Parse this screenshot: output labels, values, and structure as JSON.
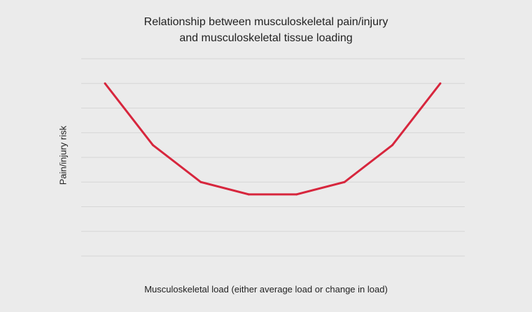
{
  "chart_data": {
    "type": "line",
    "title_lines": [
      "Relationship between musculoskeletal pain/injury",
      "and musculoskeletal tissue loading"
    ],
    "xlabel": "Musculoskeletal load (either average load or change in load)",
    "ylabel": "Pain/injury risk",
    "grid": true,
    "ylim": [
      0,
      8
    ],
    "x": [
      1,
      2,
      3,
      4,
      5,
      6,
      7,
      8
    ],
    "series": [
      {
        "values": [
          7,
          4.5,
          3,
          2.5,
          2.5,
          3,
          4.5,
          7
        ],
        "color": "#d7263d"
      }
    ],
    "colors": {
      "background": "#ebebeb",
      "grid": "#d6d6d6",
      "text": "#222222"
    }
  }
}
